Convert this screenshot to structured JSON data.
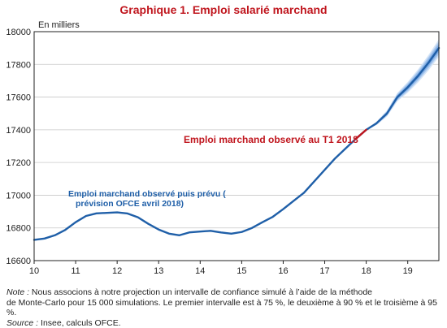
{
  "chart_data": {
    "type": "line",
    "title": "Graphique 1. Emploi salarié marchand",
    "ylabel": "En milliers",
    "xlabel": "",
    "xlim": [
      10,
      19.75
    ],
    "ylim": [
      16600,
      18000
    ],
    "x_ticks": [
      10,
      11,
      12,
      13,
      14,
      15,
      16,
      17,
      18,
      19
    ],
    "y_ticks": [
      16600,
      16800,
      17000,
      17200,
      17400,
      17600,
      17800,
      18000
    ],
    "grid": true,
    "series": [
      {
        "name": "Emploi marchand observé puis prévu ( prévision OFCE avril 2018)",
        "color": "#1f5fa8",
        "x": [
          10,
          10.25,
          10.5,
          10.75,
          11,
          11.25,
          11.5,
          11.75,
          12,
          12.25,
          12.5,
          12.75,
          13,
          13.25,
          13.5,
          13.75,
          14,
          14.25,
          14.5,
          14.75,
          15,
          15.25,
          15.5,
          15.75,
          16,
          16.25,
          16.5,
          16.75,
          17,
          17.25,
          17.5,
          17.75,
          18
        ],
        "y": [
          16727,
          16735,
          16755,
          16788,
          16835,
          16873,
          16889,
          16892,
          16895,
          16888,
          16865,
          16825,
          16790,
          16765,
          16755,
          16773,
          16778,
          16782,
          16772,
          16765,
          16775,
          16800,
          16835,
          16868,
          16915,
          16965,
          17015,
          17085,
          17155,
          17225,
          17285,
          17345,
          17400
        ]
      },
      {
        "name": "Emploi marchand observé au T1 2018",
        "color": "#c0161e",
        "x": [
          17.75,
          18
        ],
        "y": [
          17345,
          17400
        ]
      },
      {
        "name": "forecast",
        "color": "#1f5fa8",
        "x": [
          18,
          18.25,
          18.5,
          18.75,
          19,
          19.25,
          19.5,
          19.75
        ],
        "y": [
          17400,
          17440,
          17500,
          17600,
          17660,
          17730,
          17810,
          17900
        ]
      }
    ],
    "bands_half_width": {
      "x": [
        18,
        18.25,
        18.5,
        18.75,
        19,
        19.25,
        19.5,
        19.75
      ],
      "ci75": [
        0,
        5,
        9,
        12,
        15,
        18,
        21,
        24
      ],
      "ci90": [
        0,
        8,
        14,
        19,
        24,
        29,
        34,
        39
      ],
      "ci95": [
        0,
        11,
        19,
        26,
        33,
        40,
        47,
        54
      ]
    },
    "band_colors": {
      "ci95": "#d4e4f7",
      "ci90": "#a9c8ee",
      "ci75": "#7eabe3"
    },
    "annotations": [
      {
        "text": "Emploi marchand observé au T1 2018",
        "color": "#c0161e"
      },
      {
        "text_line1": "Emploi marchand observé puis prévu (",
        "text_line2": "prévision OFCE avril 2018)",
        "color": "#1f5fa8"
      }
    ]
  },
  "notes": {
    "note_label": "Note :",
    "note_text_1": " Nous associons à notre projection un intervalle de confiance simulé à l’aide de la méthode",
    "note_text_2": "de Monte-Carlo pour 15 000 simulations. Le premier intervalle est à 75 %, le deuxième à 90 % et le troisième à 95 %.",
    "source_label": "Source :",
    "source_text": " Insee, calculs OFCE."
  }
}
